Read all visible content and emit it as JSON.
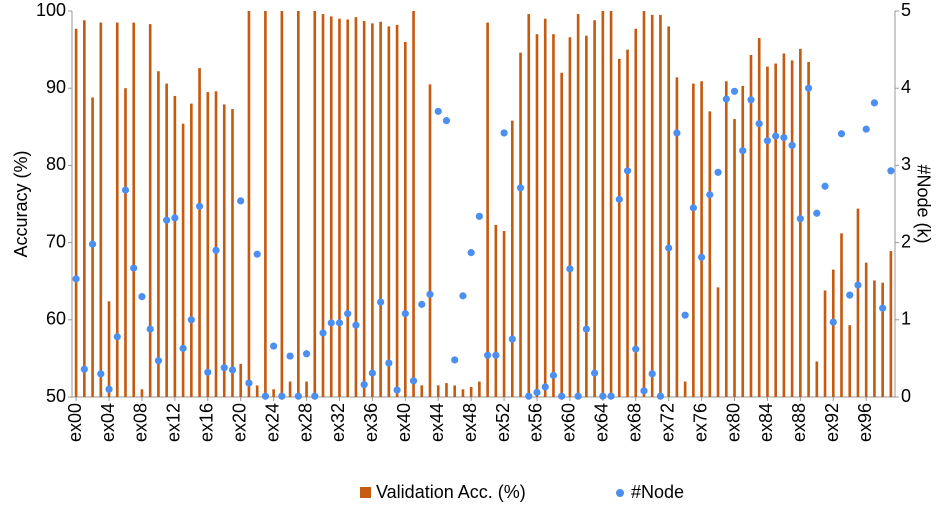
{
  "chart_data": {
    "type": "bar",
    "ylabel": "Accuracy (%)",
    "y2label": "#Node (k)",
    "categories": [
      "ex00",
      null,
      null,
      null,
      "ex04",
      null,
      null,
      null,
      "ex08",
      null,
      null,
      null,
      "ex12",
      null,
      null,
      null,
      "ex16",
      null,
      null,
      null,
      "ex20",
      null,
      null,
      null,
      "ex24",
      null,
      null,
      null,
      "ex28",
      null,
      null,
      null,
      "ex32",
      null,
      null,
      null,
      "ex36",
      null,
      null,
      null,
      "ex40",
      null,
      null,
      null,
      "ex44",
      null,
      null,
      null,
      "ex48",
      null,
      null,
      null,
      "ex52",
      null,
      null,
      null,
      "ex56",
      null,
      null,
      null,
      "ex60",
      null,
      null,
      null,
      "ex64",
      null,
      null,
      null,
      "ex68",
      null,
      null,
      null,
      "ex72",
      null,
      null,
      null,
      "ex76",
      null,
      null,
      null,
      "ex80",
      null,
      null,
      null,
      "ex84",
      null,
      null,
      null,
      "ex88",
      null,
      null,
      null,
      "ex92",
      null,
      null,
      null,
      "ex96",
      null,
      null,
      null
    ],
    "series": [
      {
        "name": "Validation Acc. (%)",
        "type": "bar",
        "color": "#c55a11",
        "values": [
          97.7,
          98.8,
          88.8,
          98.5,
          62.4,
          98.5,
          90,
          98.5,
          51,
          98.3,
          92.2,
          90.6,
          89,
          85.4,
          88,
          92.6,
          89.5,
          89.6,
          87.9,
          87.3,
          54.3,
          100,
          51.5,
          100,
          51,
          100,
          52,
          100,
          52,
          100,
          99.6,
          99.3,
          99,
          98.9,
          99.2,
          98.7,
          98.4,
          98.6,
          98,
          98.2,
          96,
          100,
          51.5,
          90.5,
          51.5,
          51.8,
          51.5,
          51,
          51.3,
          52,
          98.5,
          72.3,
          71.5,
          85.8,
          94.6,
          99.6,
          97,
          99,
          97,
          92,
          96.6,
          99.6,
          96.8,
          98.8,
          100,
          100,
          93.8,
          95,
          97.7,
          100,
          99.5,
          99.5,
          98,
          91.4,
          52,
          90.6,
          90.9,
          87,
          64.2,
          90.9,
          86,
          90.3,
          94.3,
          96.5,
          92.8,
          93.2,
          94.5,
          93.6,
          95.1,
          93.4,
          54.6,
          63.8,
          66.5,
          71.2,
          59.3,
          74.4,
          67.4,
          65.1,
          64.8,
          68.9
        ]
      },
      {
        "name": "#Node",
        "type": "scatter",
        "axis": "y2",
        "color": "#4d8ff0",
        "values": [
          1.53,
          0.36,
          1.98,
          0.3,
          0.1,
          0.78,
          2.68,
          1.67,
          1.3,
          0.88,
          0.47,
          2.29,
          2.32,
          0.63,
          1.0,
          2.47,
          0.32,
          1.9,
          0.38,
          0.35,
          2.54,
          0.18,
          1.85,
          0.01,
          0.66,
          0.01,
          0.53,
          0.01,
          0.56,
          0.01,
          0.83,
          0.96,
          0.96,
          1.08,
          0.93,
          0.16,
          0.31,
          1.23,
          0.44,
          0.09,
          1.08,
          0.21,
          1.2,
          1.33,
          3.7,
          3.58,
          0.48,
          1.31,
          1.87,
          2.34,
          0.54,
          0.54,
          3.42,
          0.75,
          2.71,
          0.01,
          0.06,
          0.13,
          0.28,
          0.01,
          1.66,
          0.01,
          0.88,
          0.31,
          0.01,
          0.01,
          2.56,
          2.93,
          0.62,
          0.08,
          0.3,
          0.01,
          1.93,
          3.42,
          1.06,
          2.45,
          1.81,
          2.62,
          2.91,
          3.86,
          3.96,
          3.19,
          3.85,
          3.54,
          3.32,
          3.38,
          3.36,
          3.26,
          2.31,
          4.0,
          2.38,
          2.73,
          0.97,
          3.41,
          1.32,
          1.45,
          3.47,
          3.81,
          1.15,
          2.93
        ]
      }
    ],
    "ylim": [
      50,
      100
    ],
    "yticks": [
      50,
      60,
      70,
      80,
      90,
      100
    ],
    "y2lim": [
      0,
      5
    ],
    "y2ticks": [
      0,
      1,
      2,
      3,
      4,
      5
    ],
    "grid": false,
    "legend": "bottom"
  }
}
